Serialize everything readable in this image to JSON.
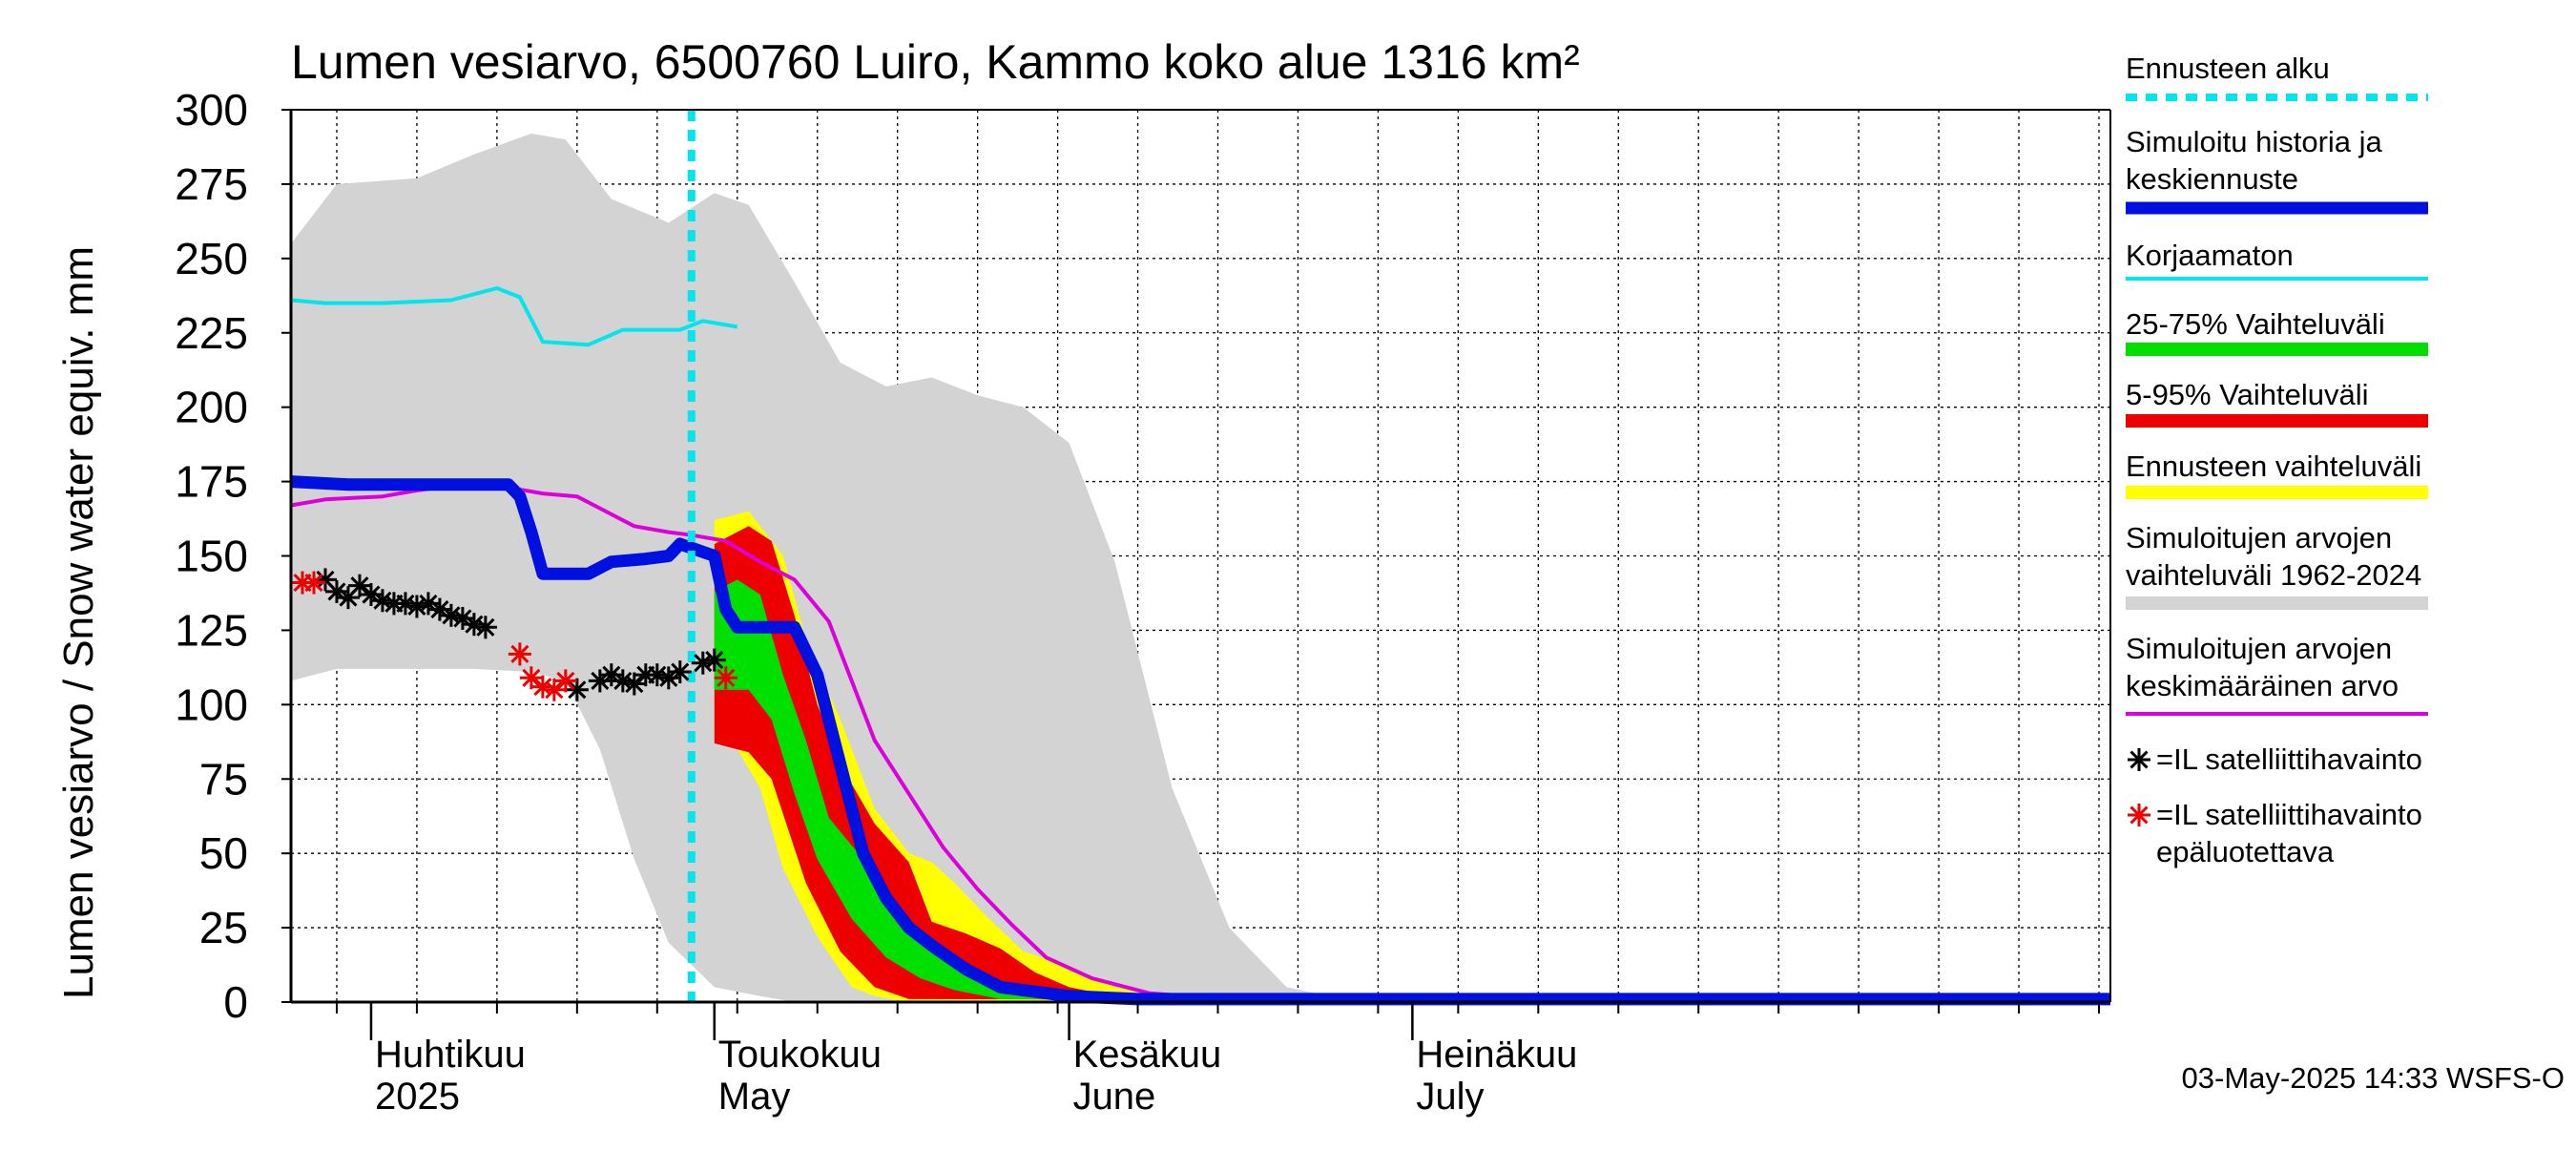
{
  "chart_data": {
    "type": "area",
    "title": "Lumen vesiarvo, 6500760 Luiro, Kammo koko alue 1316 km²",
    "ylabel": "Lumen vesiarvo / Snow water equiv.    mm",
    "ylim": [
      0,
      300
    ],
    "yticks": [
      "0",
      "25",
      "50",
      "75",
      "100",
      "125",
      "150",
      "175",
      "200",
      "225",
      "250",
      "275",
      "300"
    ],
    "x_start": "2025-03-25",
    "x_end": "2025-08-31",
    "month_labels": [
      {
        "fi": "Huhtikuu",
        "en": "2025",
        "date": "2025-04-01"
      },
      {
        "fi": "Toukokuu",
        "en": "May",
        "date": "2025-05-01"
      },
      {
        "fi": "Kesäkuu",
        "en": "June",
        "date": "2025-06-01"
      },
      {
        "fi": "Heinäkuu",
        "en": "July",
        "date": "2025-07-01"
      }
    ],
    "forecast_start": "2025-04-29",
    "grid": true,
    "legend_position": "right",
    "footer": "03-May-2025 14:33 WSFS-O",
    "colors": {
      "forecast_start": "#00e5ee",
      "simulated": "#0010e0",
      "uncorrected": "#00e5ee",
      "p25_75": "#00e000",
      "p5_95": "#ee0000",
      "forecast_range": "#ffff00",
      "historical_range": "#d3d3d3",
      "historical_mean": "#dd00dd",
      "obs": "#000000",
      "obs_unreliable": "#ee0000"
    },
    "legend": [
      {
        "key": "forecast_start",
        "label": "Ennusteen alku",
        "style": "dotted"
      },
      {
        "key": "simulated",
        "label": "Simuloitu historia ja\nkeskiennuste",
        "style": "thick"
      },
      {
        "key": "uncorrected",
        "label": "Korjaamaton",
        "style": "line"
      },
      {
        "key": "p25_75",
        "label": "25-75% Vaihteluväli",
        "style": "band"
      },
      {
        "key": "p5_95",
        "label": "5-95% Vaihteluväli",
        "style": "band"
      },
      {
        "key": "forecast_range",
        "label": "Ennusteen vaihteluväli",
        "style": "band"
      },
      {
        "key": "historical_range",
        "label": "Simuloitujen arvojen\nvaihteluväli 1962-2024",
        "style": "band"
      },
      {
        "key": "historical_mean",
        "label": "Simuloitujen arvojen\nkeskimääräinen arvo",
        "style": "line"
      },
      {
        "key": "obs",
        "label": "=IL satelliittihavainto",
        "style": "marker"
      },
      {
        "key": "obs_unreliable",
        "label": "=IL satelliittihavainto\nepäluotettava",
        "style": "marker"
      }
    ],
    "series": {
      "historical_range": {
        "upper": [
          [
            "2025-03-25",
            255
          ],
          [
            "2025-03-29",
            275
          ],
          [
            "2025-04-05",
            277
          ],
          [
            "2025-04-10",
            285
          ],
          [
            "2025-04-15",
            292
          ],
          [
            "2025-04-18",
            290
          ],
          [
            "2025-04-22",
            270
          ],
          [
            "2025-04-27",
            262
          ],
          [
            "2025-05-01",
            272
          ],
          [
            "2025-05-04",
            268
          ],
          [
            "2025-05-08",
            242
          ],
          [
            "2025-05-12",
            215
          ],
          [
            "2025-05-16",
            207
          ],
          [
            "2025-05-20",
            210
          ],
          [
            "2025-05-24",
            204
          ],
          [
            "2025-05-28",
            200
          ],
          [
            "2025-06-01",
            188
          ],
          [
            "2025-06-05",
            148
          ],
          [
            "2025-06-10",
            72
          ],
          [
            "2025-06-15",
            25
          ],
          [
            "2025-06-20",
            5
          ],
          [
            "2025-06-25",
            1
          ],
          [
            "2025-08-31",
            1
          ]
        ],
        "lower": [
          [
            "2025-03-25",
            108
          ],
          [
            "2025-03-29",
            112
          ],
          [
            "2025-04-05",
            112
          ],
          [
            "2025-04-10",
            112
          ],
          [
            "2025-04-15",
            111
          ],
          [
            "2025-04-18",
            108
          ],
          [
            "2025-04-21",
            85
          ],
          [
            "2025-04-24",
            48
          ],
          [
            "2025-04-27",
            20
          ],
          [
            "2025-05-01",
            5
          ],
          [
            "2025-05-05",
            2
          ],
          [
            "2025-05-08",
            0
          ],
          [
            "2025-08-31",
            0
          ]
        ]
      },
      "forecast_range": {
        "upper": [
          [
            "2025-05-01",
            162
          ],
          [
            "2025-05-04",
            165
          ],
          [
            "2025-05-07",
            150
          ],
          [
            "2025-05-09",
            122
          ],
          [
            "2025-05-12",
            95
          ],
          [
            "2025-05-15",
            65
          ],
          [
            "2025-05-18",
            50
          ],
          [
            "2025-05-20",
            47
          ],
          [
            "2025-05-22",
            40
          ],
          [
            "2025-05-25",
            28
          ],
          [
            "2025-05-28",
            17
          ],
          [
            "2025-06-01",
            12
          ],
          [
            "2025-06-05",
            5
          ],
          [
            "2025-06-10",
            1
          ],
          [
            "2025-08-31",
            1
          ]
        ],
        "lower": [
          [
            "2025-05-01",
            91
          ],
          [
            "2025-05-03",
            85
          ],
          [
            "2025-05-05",
            72
          ],
          [
            "2025-05-07",
            45
          ],
          [
            "2025-05-10",
            22
          ],
          [
            "2025-05-13",
            5
          ],
          [
            "2025-05-15",
            2
          ],
          [
            "2025-05-18",
            0
          ],
          [
            "2025-08-31",
            0
          ]
        ]
      },
      "p5_95": {
        "upper": [
          [
            "2025-05-01",
            154
          ],
          [
            "2025-05-04",
            160
          ],
          [
            "2025-05-06",
            155
          ],
          [
            "2025-05-08",
            130
          ],
          [
            "2025-05-10",
            100
          ],
          [
            "2025-05-12",
            80
          ],
          [
            "2025-05-15",
            60
          ],
          [
            "2025-05-18",
            47
          ],
          [
            "2025-05-20",
            27
          ],
          [
            "2025-05-23",
            23
          ],
          [
            "2025-05-26",
            18
          ],
          [
            "2025-05-29",
            10
          ],
          [
            "2025-06-01",
            5
          ],
          [
            "2025-06-05",
            2
          ],
          [
            "2025-08-31",
            1
          ]
        ],
        "lower": [
          [
            "2025-05-01",
            87
          ],
          [
            "2025-05-04",
            84
          ],
          [
            "2025-05-06",
            75
          ],
          [
            "2025-05-09",
            40
          ],
          [
            "2025-05-12",
            17
          ],
          [
            "2025-05-15",
            5
          ],
          [
            "2025-05-18",
            1
          ],
          [
            "2025-08-31",
            0
          ]
        ]
      },
      "p25_75": {
        "upper": [
          [
            "2025-05-01",
            138
          ],
          [
            "2025-05-03",
            142
          ],
          [
            "2025-05-05",
            137
          ],
          [
            "2025-05-07",
            110
          ],
          [
            "2025-05-09",
            88
          ],
          [
            "2025-05-11",
            62
          ],
          [
            "2025-05-14",
            48
          ],
          [
            "2025-05-17",
            33
          ],
          [
            "2025-05-20",
            17
          ],
          [
            "2025-05-23",
            9
          ],
          [
            "2025-05-27",
            3
          ],
          [
            "2025-06-01",
            1
          ],
          [
            "2025-08-31",
            1
          ]
        ],
        "lower": [
          [
            "2025-05-01",
            105
          ],
          [
            "2025-05-04",
            105
          ],
          [
            "2025-05-06",
            95
          ],
          [
            "2025-05-08",
            70
          ],
          [
            "2025-05-10",
            48
          ],
          [
            "2025-05-13",
            28
          ],
          [
            "2025-05-16",
            15
          ],
          [
            "2025-05-19",
            8
          ],
          [
            "2025-05-22",
            4
          ],
          [
            "2025-05-26",
            1
          ],
          [
            "2025-08-31",
            0
          ]
        ]
      },
      "simulated": [
        [
          "2025-03-25",
          175
        ],
        [
          "2025-03-30",
          174
        ],
        [
          "2025-04-05",
          174
        ],
        [
          "2025-04-10",
          174
        ],
        [
          "2025-04-13",
          174
        ],
        [
          "2025-04-14",
          170
        ],
        [
          "2025-04-15",
          158
        ],
        [
          "2025-04-16",
          144
        ],
        [
          "2025-04-20",
          144
        ],
        [
          "2025-04-22",
          148
        ],
        [
          "2025-04-25",
          149
        ],
        [
          "2025-04-27",
          150
        ],
        [
          "2025-04-28",
          154
        ],
        [
          "2025-05-01",
          150
        ],
        [
          "2025-05-02",
          132
        ],
        [
          "2025-05-03",
          126
        ],
        [
          "2025-05-08",
          126
        ],
        [
          "2025-05-10",
          110
        ],
        [
          "2025-05-12",
          80
        ],
        [
          "2025-05-14",
          50
        ],
        [
          "2025-05-16",
          35
        ],
        [
          "2025-05-18",
          25
        ],
        [
          "2025-05-20",
          19
        ],
        [
          "2025-05-23",
          11
        ],
        [
          "2025-05-26",
          5
        ],
        [
          "2025-06-01",
          2
        ],
        [
          "2025-06-07",
          1
        ],
        [
          "2025-08-31",
          1
        ]
      ],
      "uncorrected": [
        [
          "2025-03-25",
          236
        ],
        [
          "2025-03-28",
          235
        ],
        [
          "2025-04-02",
          235
        ],
        [
          "2025-04-08",
          236
        ],
        [
          "2025-04-12",
          240
        ],
        [
          "2025-04-14",
          237
        ],
        [
          "2025-04-16",
          222
        ],
        [
          "2025-04-20",
          221
        ],
        [
          "2025-04-23",
          226
        ],
        [
          "2025-04-26",
          226
        ],
        [
          "2025-04-28",
          226
        ],
        [
          "2025-04-30",
          229
        ],
        [
          "2025-05-03",
          227
        ]
      ],
      "historical_mean": [
        [
          "2025-03-25",
          167
        ],
        [
          "2025-03-28",
          169
        ],
        [
          "2025-04-02",
          170
        ],
        [
          "2025-04-05",
          172
        ],
        [
          "2025-04-09",
          174
        ],
        [
          "2025-04-13",
          173
        ],
        [
          "2025-04-16",
          171
        ],
        [
          "2025-04-19",
          170
        ],
        [
          "2025-04-21",
          166
        ],
        [
          "2025-04-24",
          160
        ],
        [
          "2025-04-27",
          158
        ],
        [
          "2025-04-29",
          157
        ],
        [
          "2025-05-02",
          155
        ],
        [
          "2025-05-05",
          148
        ],
        [
          "2025-05-08",
          142
        ],
        [
          "2025-05-11",
          128
        ],
        [
          "2025-05-13",
          108
        ],
        [
          "2025-05-15",
          88
        ],
        [
          "2025-05-18",
          70
        ],
        [
          "2025-05-21",
          52
        ],
        [
          "2025-05-24",
          38
        ],
        [
          "2025-05-27",
          26
        ],
        [
          "2025-05-30",
          15
        ],
        [
          "2025-06-03",
          8
        ],
        [
          "2025-06-08",
          3
        ],
        [
          "2025-06-15",
          1
        ],
        [
          "2025-08-31",
          1
        ]
      ]
    },
    "observations": [
      [
        "2025-03-28",
        142
      ],
      [
        "2025-03-29",
        138
      ],
      [
        "2025-03-30",
        136
      ],
      [
        "2025-03-31",
        140
      ],
      [
        "2025-04-01",
        137
      ],
      [
        "2025-04-02",
        135
      ],
      [
        "2025-04-03",
        134
      ],
      [
        "2025-04-04",
        134
      ],
      [
        "2025-04-05",
        133
      ],
      [
        "2025-04-06",
        134
      ],
      [
        "2025-04-07",
        132
      ],
      [
        "2025-04-08",
        130
      ],
      [
        "2025-04-09",
        129
      ],
      [
        "2025-04-10",
        127
      ],
      [
        "2025-04-11",
        126
      ],
      [
        "2025-04-19",
        105
      ],
      [
        "2025-04-21",
        108
      ],
      [
        "2025-04-22",
        110
      ],
      [
        "2025-04-23",
        108
      ],
      [
        "2025-04-24",
        107
      ],
      [
        "2025-04-25",
        110
      ],
      [
        "2025-04-26",
        110
      ],
      [
        "2025-04-27",
        109
      ],
      [
        "2025-04-28",
        111
      ],
      [
        "2025-04-30",
        114
      ],
      [
        "2025-05-01",
        115
      ]
    ],
    "observations_unreliable": [
      [
        "2025-03-26",
        141
      ],
      [
        "2025-03-27",
        141
      ],
      [
        "2025-04-14",
        117
      ],
      [
        "2025-04-15",
        109
      ],
      [
        "2025-04-16",
        106
      ],
      [
        "2025-04-17",
        105
      ],
      [
        "2025-04-18",
        108
      ],
      [
        "2025-05-02",
        109
      ]
    ]
  }
}
